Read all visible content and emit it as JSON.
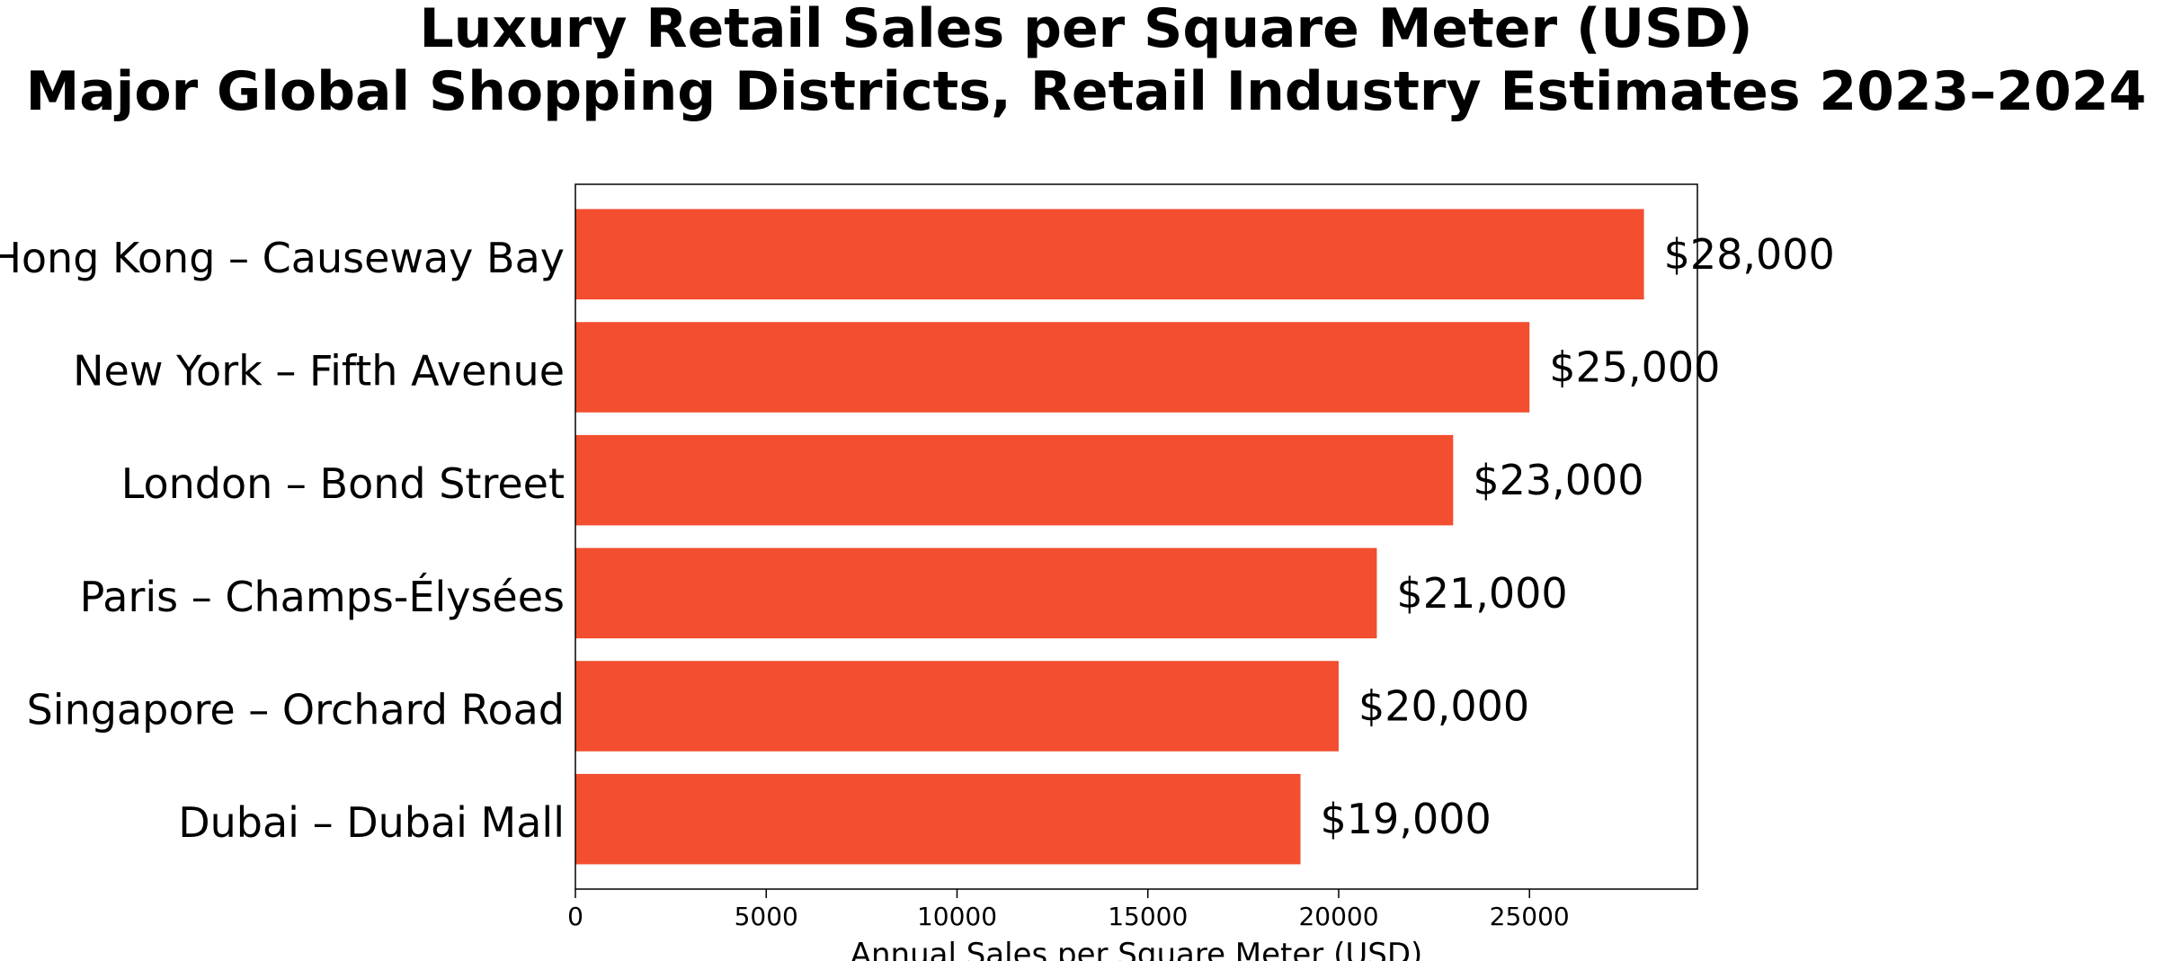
{
  "chart_data": {
    "type": "bar",
    "orientation": "horizontal",
    "title": [
      "Luxury Retail Sales per Square Meter (USD)",
      "Major Global Shopping Districts, Retail Industry Estimates 2023–2024"
    ],
    "xlabel": "Annual Sales per Square Meter (USD)",
    "ylabel": "",
    "categories": [
      "Hong Kong – Causeway Bay",
      "New York – Fifth Avenue",
      "London – Bond Street",
      "Paris – Champs-Élysées",
      "Singapore – Orchard Road",
      "Dubai – Dubai Mall"
    ],
    "values": [
      28000,
      25000,
      23000,
      21000,
      20000,
      19000
    ],
    "value_labels": [
      "$28,000",
      "$25,000",
      "$23,000",
      "$21,000",
      "$20,000",
      "$19,000"
    ],
    "xticks": [
      0,
      5000,
      10000,
      15000,
      20000,
      25000
    ],
    "xtick_labels": [
      "0",
      "5000",
      "10000",
      "15000",
      "20000",
      "25000"
    ],
    "xlim": [
      0,
      29400
    ],
    "grid": false,
    "legend": "none",
    "bar_color": "#F24E2F"
  }
}
